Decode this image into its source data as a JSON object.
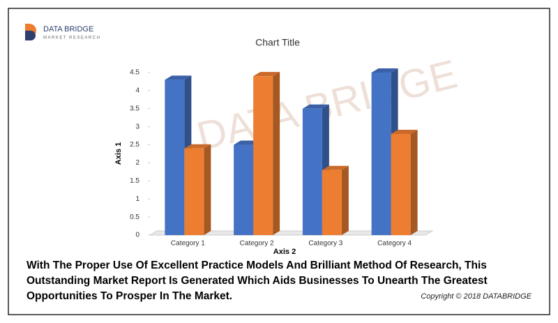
{
  "logo": {
    "name": "DATA BRIDGE",
    "tagline": "MARKET RESEARCH"
  },
  "chart_data": {
    "type": "bar3d",
    "title": "Chart Title",
    "x_label": "Axis 2",
    "y_label": "Axis 1",
    "categories": [
      "Category 1",
      "Category 2",
      "Category 3",
      "Category 4"
    ],
    "series": [
      {
        "color": "#4472c4",
        "values": [
          4.3,
          2.5,
          3.5,
          4.5
        ]
      },
      {
        "color": "#ed7d31",
        "values": [
          2.4,
          4.4,
          1.8,
          2.8
        ]
      }
    ],
    "ylim": [
      0,
      4.5
    ],
    "yticks": [
      0,
      0.5,
      1,
      1.5,
      2,
      2.5,
      3,
      3.5,
      4,
      4.5
    ],
    "grid": false
  },
  "caption": [
    "With The Proper Use Of Excellent Practice Models And Brilliant Method Of Research, This",
    "Outstanding Market Report Is Generated Which Aids Businesses To Unearth The Greatest",
    "Opportunities To Prosper In The Market."
  ],
  "copyright": "Copyright © 2018 DATABRIDGE"
}
